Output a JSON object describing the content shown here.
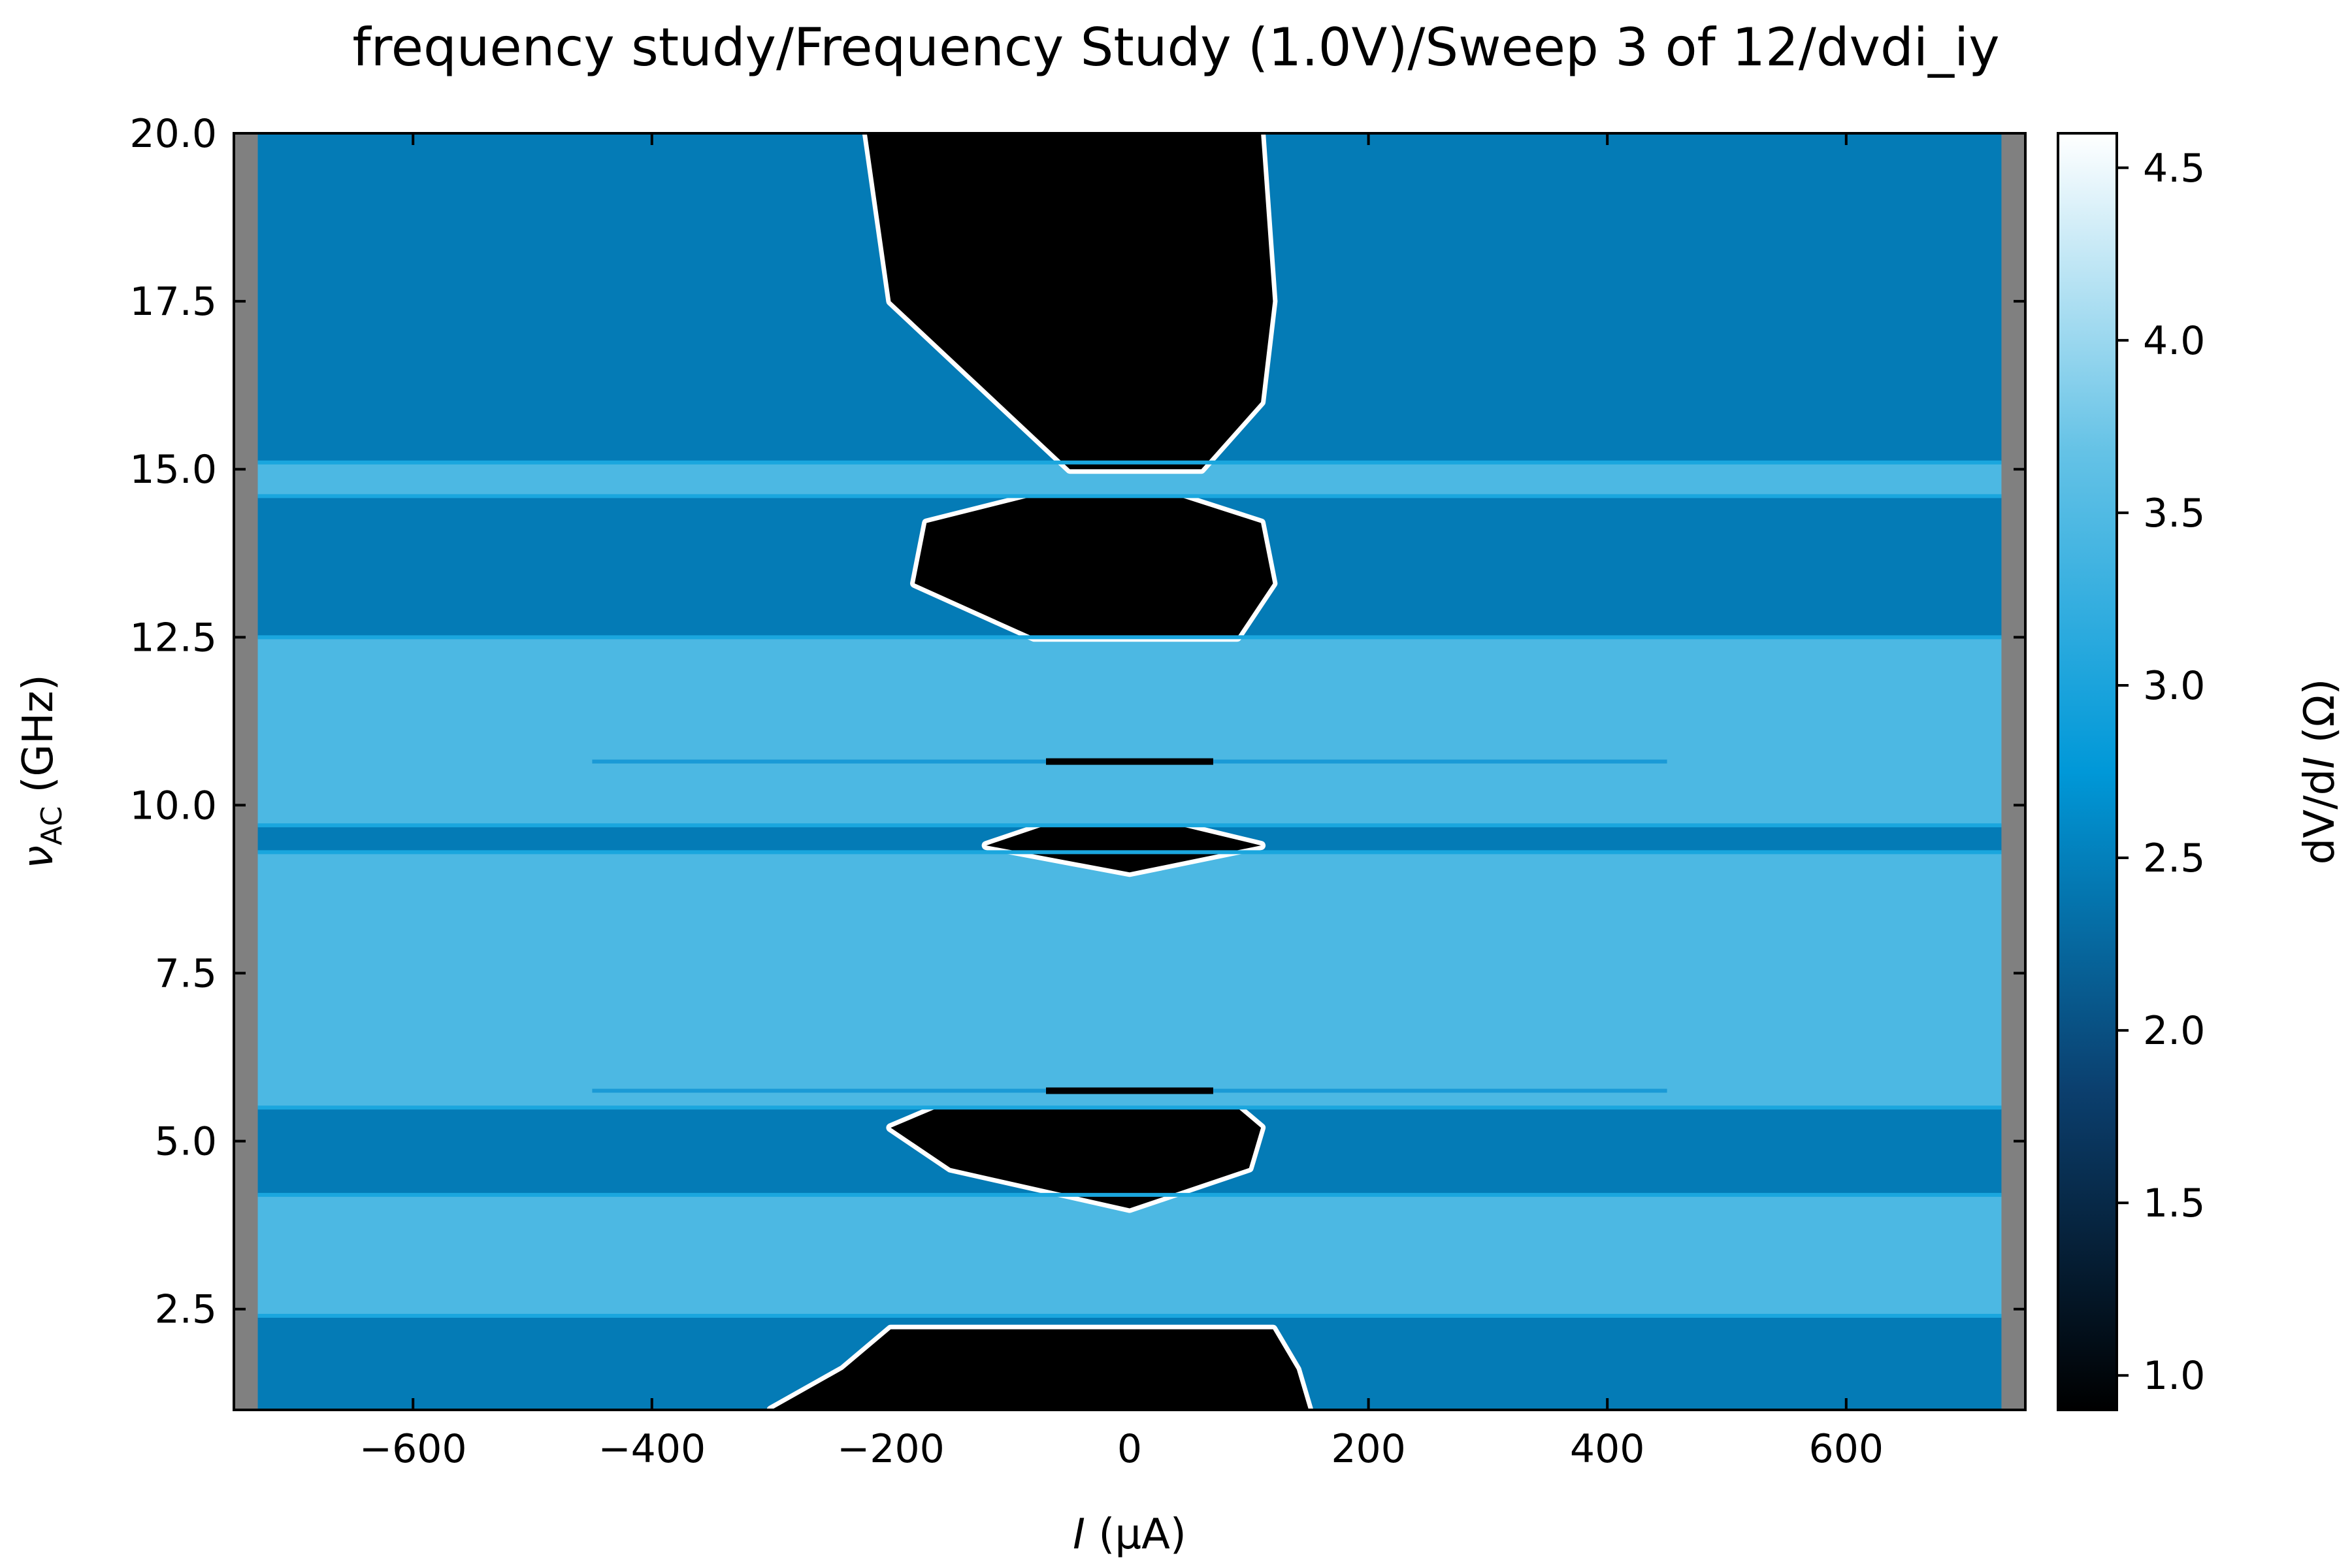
{
  "chart_data": {
    "type": "heatmap",
    "title": "frequency study/Frequency Study (1.0V)/Sweep 3 of 12/dvdi_iy",
    "xlabel": {
      "var": "I",
      "unit": " (μA)"
    },
    "ylabel": {
      "var": "ν",
      "sub": "AC",
      "unit": " (GHz)"
    },
    "colorbar_label": {
      "pre": "dV/d",
      "var": "I",
      "post": " (Ω)"
    },
    "xlim": [
      -750,
      750
    ],
    "ylim": [
      1.0,
      20.0
    ],
    "x_ticks": [
      -600,
      -400,
      -200,
      0,
      200,
      400,
      600
    ],
    "x_tick_labels": [
      "−600",
      "−400",
      "−200",
      "0",
      "200",
      "400",
      "600"
    ],
    "y_ticks": [
      2.5,
      5.0,
      7.5,
      10.0,
      12.5,
      15.0,
      17.5,
      20.0
    ],
    "y_tick_labels": [
      "2.5",
      "5.0",
      "7.5",
      "10.0",
      "12.5",
      "15.0",
      "17.5",
      "20.0"
    ],
    "colorbar_range": [
      0.9,
      4.6
    ],
    "colorbar_ticks": [
      1.0,
      1.5,
      2.0,
      2.5,
      3.0,
      3.5,
      4.0,
      4.5
    ],
    "colorbar_tick_labels": [
      "1.0",
      "1.5",
      "2.0",
      "2.5",
      "3.0",
      "3.5",
      "4.0",
      "4.5"
    ],
    "colormap": [
      "#000000",
      "#0b3f6e",
      "#0098d8",
      "#64c2e6",
      "#ffffff"
    ],
    "masked_color": "#808080",
    "data_x_range": [
      -730,
      730
    ],
    "bands": [
      {
        "y0": 1.0,
        "y1": 2.4,
        "level": "low",
        "gap": [
          [
            1.0,
            -300,
            150
          ],
          [
            1.6,
            -240,
            140
          ],
          [
            2.2,
            -200,
            120
          ]
        ]
      },
      {
        "y0": 2.4,
        "y1": 4.2,
        "level": "high"
      },
      {
        "y0": 4.2,
        "y1": 5.5,
        "level": "low",
        "gap": [
          [
            4.0,
            0,
            0
          ],
          [
            4.6,
            -150,
            100
          ],
          [
            5.2,
            -200,
            110
          ],
          [
            5.5,
            -160,
            90
          ]
        ]
      },
      {
        "y0": 5.5,
        "y1": 9.3,
        "level": "high"
      },
      {
        "y0": 9.3,
        "y1": 9.7,
        "level": "low",
        "gap": [
          [
            9.0,
            0,
            0
          ],
          [
            9.4,
            -120,
            110
          ],
          [
            9.7,
            -70,
            40
          ]
        ]
      },
      {
        "y0": 9.7,
        "y1": 12.5,
        "level": "high"
      },
      {
        "y0": 12.5,
        "y1": 14.6,
        "level": "low",
        "gap": [
          [
            12.5,
            -80,
            90
          ],
          [
            13.3,
            -180,
            120
          ],
          [
            14.2,
            -170,
            110
          ],
          [
            14.6,
            -80,
            40
          ]
        ]
      },
      {
        "y0": 14.6,
        "y1": 15.1,
        "level": "high"
      },
      {
        "y0": 15.1,
        "y1": 20.0,
        "level": "low",
        "gap": [
          [
            15.0,
            -50,
            60
          ],
          [
            16.0,
            -110,
            110
          ],
          [
            17.5,
            -200,
            120
          ],
          [
            20.0,
            -220,
            110
          ]
        ]
      }
    ],
    "levels": {
      "low": 2.45,
      "high": 3.45,
      "gap": 0.9
    },
    "thin_lines": [
      10.65,
      5.75
    ],
    "grid": false,
    "legend": "none"
  }
}
